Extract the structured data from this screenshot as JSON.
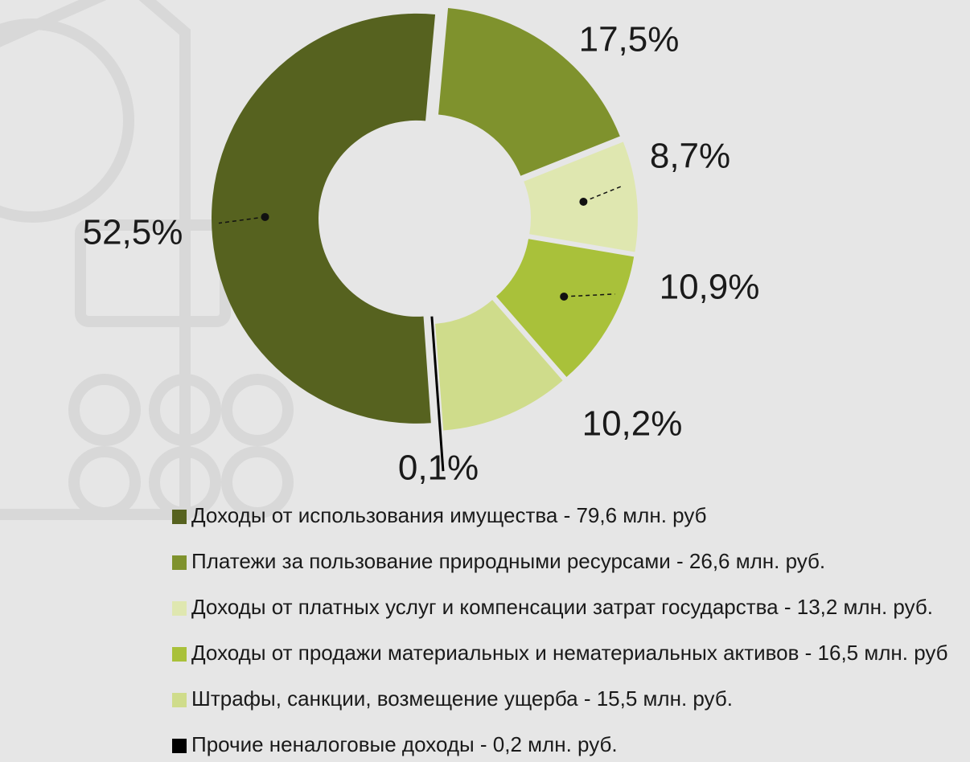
{
  "chart_data": {
    "type": "donut",
    "categories": [
      "Доходы от использования имущества - 79,6 млн. руб",
      "Платежи за пользование природными ресурсами - 26,6  млн. руб.",
      "Доходы от платных услуг и компенсации затрат государства - 13,2 млн. руб.",
      "Доходы от продажи материальных и нематериальных активов - 16,5 млн. руб",
      "Штрафы, санкции, возмещение ущерба - 15,5 млн. руб.",
      "Прочие неналоговые доходы - 0,2 млн. руб."
    ],
    "values": [
      52.5,
      17.5,
      8.7,
      10.9,
      10.2,
      0.1
    ],
    "value_labels": [
      "52,5%",
      "17,5%",
      "8,7%",
      "10,9%",
      "10,2%",
      "0,1%"
    ],
    "colors": [
      "#56621f",
      "#7f922d",
      "#dfe7b0",
      "#a9c13a",
      "#cfdc8b",
      "#000000"
    ]
  }
}
